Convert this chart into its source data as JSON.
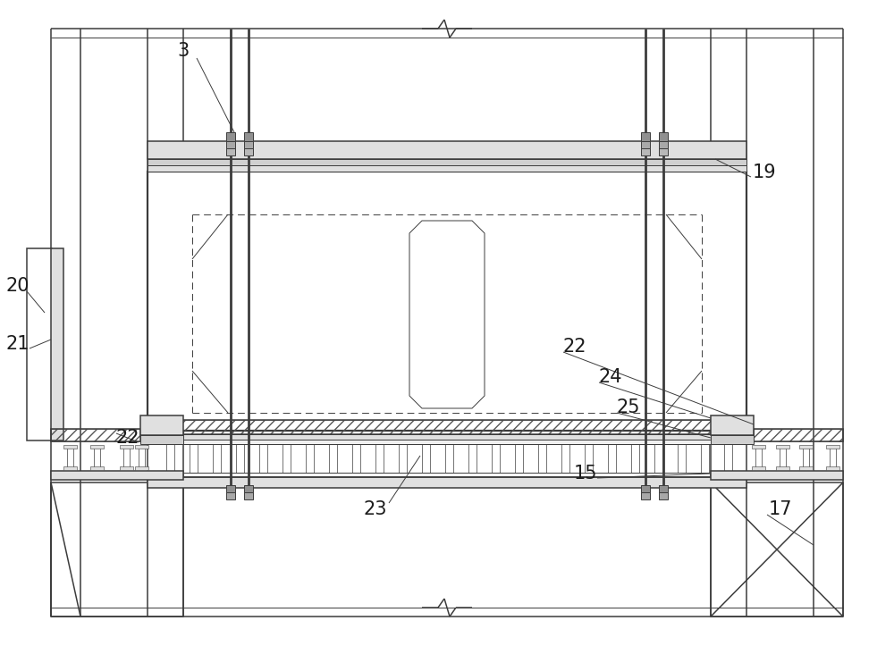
{
  "bg_color": "#ffffff",
  "lc": "#3c3c3c",
  "gray1": "#f0f0f0",
  "gray2": "#e0e0e0",
  "gray3": "#d0d0d0",
  "gray4": "#c0c0c0",
  "lw1": 0.7,
  "lw2": 1.1,
  "lw3": 1.6,
  "label_fs": 15
}
